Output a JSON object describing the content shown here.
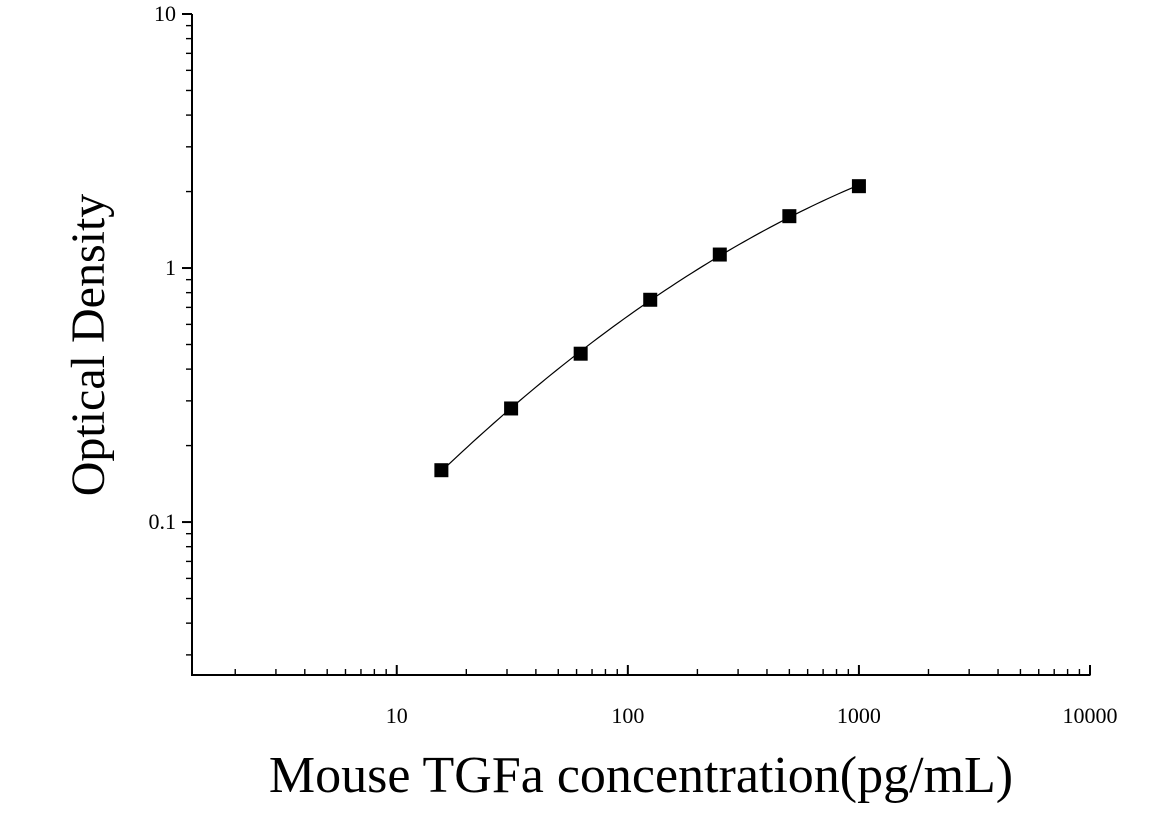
{
  "chart_data": {
    "type": "scatter",
    "xlabel": "Mouse TGFa concentration(pg/mL)",
    "ylabel": "Optical Density",
    "x_scale": "log",
    "y_scale": "log",
    "xlim": [
      1.3,
      10000
    ],
    "ylim": [
      0.025,
      10
    ],
    "x_ticks": [
      10,
      100,
      1000,
      10000
    ],
    "x_tick_labels": [
      "10",
      "100",
      "1000",
      "10000"
    ],
    "y_ticks": [
      0.1,
      1,
      10
    ],
    "y_tick_labels": [
      "0.1",
      "1",
      "10"
    ],
    "grid": false,
    "series": [
      {
        "x": [
          15.6,
          31.25,
          62.5,
          125,
          250,
          500,
          1000
        ],
        "y": [
          0.16,
          0.28,
          0.46,
          0.75,
          1.13,
          1.6,
          2.1
        ],
        "marker": "square",
        "fit_line": true
      }
    ],
    "color": "#000000"
  }
}
